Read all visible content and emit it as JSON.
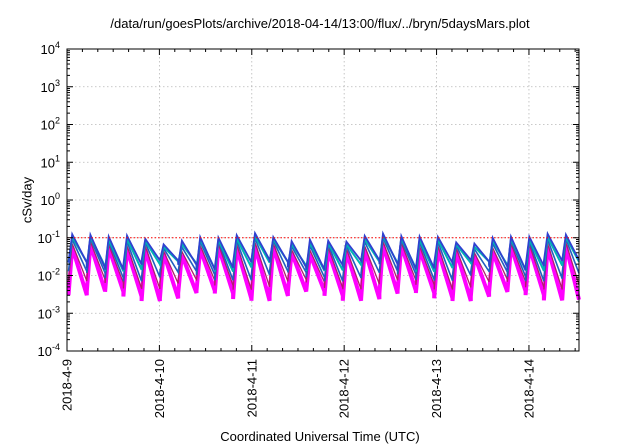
{
  "chart_data": {
    "type": "line",
    "title": "/data/run/goesPlots/archive/2018-04-14/13:00/flux/../bryn/5daysMars.plot",
    "xlabel": "Coordinated Universal Time (UTC)",
    "ylabel": "cSv/day",
    "y_scale": "log",
    "ylim": [
      0.0001,
      10000
    ],
    "xlim": [
      "2018-04-09 00:00",
      "2018-04-14 13:00"
    ],
    "y_ticks": [
      {
        "value": 0.0001,
        "base": "10",
        "exp": "-4"
      },
      {
        "value": 0.001,
        "base": "10",
        "exp": "-3"
      },
      {
        "value": 0.01,
        "base": "10",
        "exp": "-2"
      },
      {
        "value": 0.1,
        "base": "10",
        "exp": "-1"
      },
      {
        "value": 1,
        "base": "10",
        "exp": "0"
      },
      {
        "value": 10,
        "base": "10",
        "exp": "1"
      },
      {
        "value": 100,
        "base": "10",
        "exp": "2"
      },
      {
        "value": 1000,
        "base": "10",
        "exp": "3"
      },
      {
        "value": 10000,
        "base": "10",
        "exp": "4"
      }
    ],
    "x_ticks": [
      {
        "value": "2018-04-09",
        "label": "2018-4-9"
      },
      {
        "value": "2018-04-10",
        "label": "2018-4-10"
      },
      {
        "value": "2018-04-11",
        "label": "2018-4-11"
      },
      {
        "value": "2018-04-12",
        "label": "2018-4-12"
      },
      {
        "value": "2018-04-13",
        "label": "2018-4-13"
      },
      {
        "value": "2018-04-14",
        "label": "2018-4-14"
      }
    ],
    "grid": true,
    "reference_line": {
      "value": 0.1,
      "color": "#ff0000",
      "style": "dotted"
    },
    "pattern": {
      "description": "sawtooth, about 5 cycles per day",
      "cycles_per_day": 5,
      "peak_range": [
        0.07,
        0.12
      ],
      "trough_range": [
        0.003,
        0.02
      ]
    },
    "series": [
      {
        "color": "#ff00ff",
        "peak": 0.05,
        "trough": 0.003,
        "width": 4
      },
      {
        "color": "#b0206a",
        "peak": 0.06,
        "trough": 0.006,
        "width": 1.3
      },
      {
        "color": "#2060c0",
        "peak": 0.075,
        "trough": 0.01,
        "width": 1.6
      },
      {
        "color": "#00b4b4",
        "peak": 0.085,
        "trough": 0.018,
        "width": 2
      },
      {
        "color": "#3040d0",
        "peak": 0.1,
        "trough": 0.02,
        "width": 1.8
      }
    ]
  }
}
